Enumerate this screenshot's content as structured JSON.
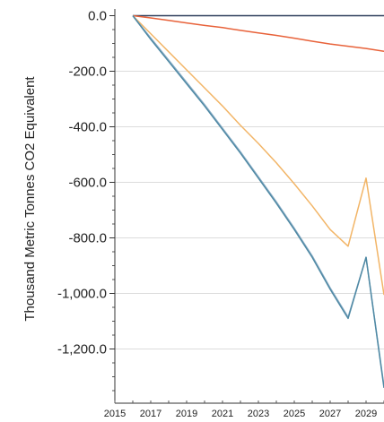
{
  "chart_data": {
    "type": "line",
    "title": "",
    "xlabel": "",
    "ylabel": "Thousand Metric Tonnes CO2 Equivalent",
    "xlim": [
      2015,
      2030
    ],
    "ylim": [
      -1350,
      0
    ],
    "grid": true,
    "x_ticks": [
      2015,
      2017,
      2019,
      2021,
      2023,
      2025,
      2027,
      2029
    ],
    "x_tick_labels": [
      "2015",
      "2017",
      "2019",
      "2021",
      "2023",
      "2025",
      "2027",
      "2029"
    ],
    "y_ticks": [
      0,
      -200,
      -400,
      -600,
      -800,
      -1000,
      -1200
    ],
    "y_tick_labels": [
      "0.0",
      "-200.0",
      "-400.0",
      "-600.0",
      "-800.0",
      "-1,000.0",
      "-1,200.0"
    ],
    "x": [
      2016,
      2017,
      2018,
      2019,
      2020,
      2021,
      2022,
      2023,
      2024,
      2025,
      2026,
      2027,
      2028,
      2029,
      2030
    ],
    "series": [
      {
        "color": "#2f3e5c",
        "values": [
          0,
          0,
          0,
          0,
          0,
          0,
          0,
          0,
          0,
          0,
          0,
          0,
          0,
          0,
          0
        ]
      },
      {
        "color": "#e8623a",
        "values": [
          0,
          -8,
          -17,
          -26,
          -35,
          -43,
          -53,
          -62,
          -71,
          -81,
          -92,
          -102,
          -110,
          -118,
          -128
        ]
      },
      {
        "color": "#f2b567",
        "values": [
          0,
          -65,
          -130,
          -195,
          -260,
          -325,
          -395,
          -460,
          -530,
          -605,
          -685,
          -770,
          -830,
          -585,
          -1005
        ]
      },
      {
        "color": "#8fb0c8",
        "values": [
          0,
          -80,
          -160,
          -240,
          -320,
          -405,
          -490,
          -580,
          -670,
          -765,
          -865,
          -980,
          -1085,
          -870,
          -1335
        ]
      },
      {
        "color": "#4f89a4",
        "values": [
          0,
          -85,
          -165,
          -245,
          -325,
          -410,
          -495,
          -585,
          -675,
          -770,
          -870,
          -985,
          -1090,
          -870,
          -1340
        ]
      }
    ]
  }
}
